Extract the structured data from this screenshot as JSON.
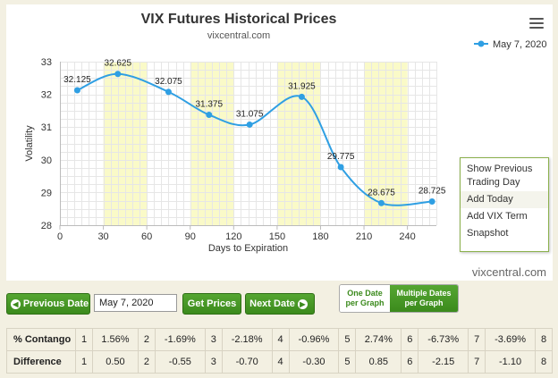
{
  "chart_data": {
    "type": "line",
    "title": "VIX Futures Historical Prices",
    "subtitle": "vixcentral.com",
    "xlabel": "Days to Expiration",
    "ylabel": "Volatility",
    "xlim": [
      0,
      260
    ],
    "ylim": [
      28,
      33
    ],
    "xticks": [
      0,
      30,
      60,
      90,
      120,
      150,
      180,
      210,
      240
    ],
    "yticks": [
      28,
      29,
      30,
      31,
      32,
      33
    ],
    "legend_position": "top-right",
    "grid": true,
    "series": [
      {
        "name": "May 7, 2020",
        "color": "#2f9fe3",
        "x": [
          12,
          40,
          75,
          103,
          131,
          167,
          194,
          222,
          257
        ],
        "values": [
          32.125,
          32.625,
          32.075,
          31.375,
          31.075,
          31.925,
          29.775,
          28.675,
          28.725
        ],
        "labels": [
          "32.125",
          "32.625",
          "32.075",
          "31.375",
          "31.075",
          "31.925",
          "29.775",
          "28.675",
          "28.725"
        ]
      }
    ],
    "highlight_bands": [
      [
        30,
        60
      ],
      [
        90,
        120
      ],
      [
        150,
        180
      ],
      [
        210,
        240
      ]
    ],
    "highlight_color": "#fafac8"
  },
  "watermark": "vixcentral.com",
  "menu": {
    "items": [
      "Show Previous Trading Day",
      "Add Today",
      "Add VIX Term",
      "Snapshot"
    ]
  },
  "controls": {
    "prev_label": "Previous Date",
    "date_value": "May 7, 2020",
    "get_label": "Get Prices",
    "next_label": "Next Date",
    "toggle_one_line1": "One Date",
    "toggle_one_line2": "per Graph",
    "toggle_multi_line1": "Multiple Dates",
    "toggle_multi_line2": "per Graph"
  },
  "table": {
    "rows": [
      {
        "label": "% Contango",
        "cells": [
          [
            "1",
            "1.56%"
          ],
          [
            "2",
            "-1.69%"
          ],
          [
            "3",
            "-2.18%"
          ],
          [
            "4",
            "-0.96%"
          ],
          [
            "5",
            "2.74%"
          ],
          [
            "6",
            "-6.73%"
          ],
          [
            "7",
            "-3.69%"
          ],
          [
            "8",
            ""
          ]
        ]
      },
      {
        "label": "Difference",
        "cells": [
          [
            "1",
            "0.50"
          ],
          [
            "2",
            "-0.55"
          ],
          [
            "3",
            "-0.70"
          ],
          [
            "4",
            "-0.30"
          ],
          [
            "5",
            "0.85"
          ],
          [
            "6",
            "-2.15"
          ],
          [
            "7",
            "-1.10"
          ],
          [
            "8",
            ""
          ]
        ]
      }
    ]
  }
}
